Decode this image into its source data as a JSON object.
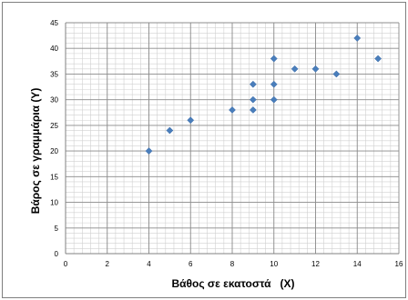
{
  "chart_data": {
    "type": "scatter",
    "title": "",
    "xlabel": "Βάθος σε εκατοστά   (X)",
    "ylabel": "Βάρος σε γραμμάρια (Y)",
    "xlim": [
      0,
      16
    ],
    "ylim": [
      0,
      45
    ],
    "x_ticks": [
      0,
      2,
      4,
      6,
      8,
      10,
      12,
      14,
      16
    ],
    "y_ticks": [
      0,
      5,
      10,
      15,
      20,
      25,
      30,
      35,
      40,
      45
    ],
    "grid": true,
    "minor_grid": true,
    "legend": "none",
    "marker": "diamond",
    "marker_color": "#4a7ebb",
    "series": [
      {
        "points": [
          {
            "x": 4,
            "y": 20
          },
          {
            "x": 5,
            "y": 24
          },
          {
            "x": 6,
            "y": 26
          },
          {
            "x": 8,
            "y": 28
          },
          {
            "x": 9,
            "y": 28
          },
          {
            "x": 9,
            "y": 30
          },
          {
            "x": 9,
            "y": 33
          },
          {
            "x": 10,
            "y": 30
          },
          {
            "x": 10,
            "y": 33
          },
          {
            "x": 10,
            "y": 38
          },
          {
            "x": 11,
            "y": 36
          },
          {
            "x": 12,
            "y": 36
          },
          {
            "x": 13,
            "y": 35
          },
          {
            "x": 14,
            "y": 42
          },
          {
            "x": 15,
            "y": 38
          }
        ]
      }
    ]
  }
}
